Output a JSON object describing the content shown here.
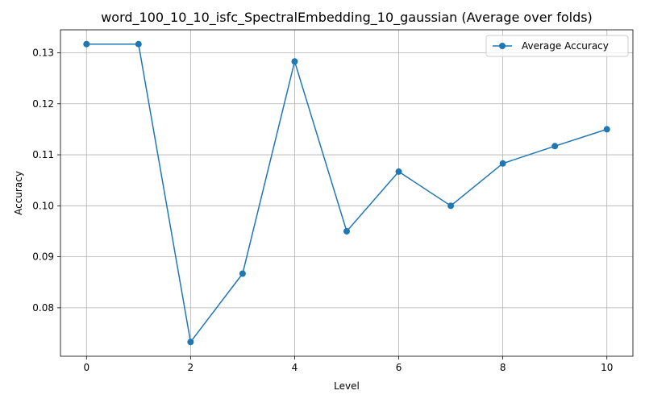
{
  "chart_data": {
    "type": "line",
    "title": "word_100_10_10_isfc_SpectralEmbedding_10_gaussian (Average over folds)",
    "xlabel": "Level",
    "ylabel": "Accuracy",
    "x": [
      0,
      1,
      2,
      3,
      4,
      5,
      6,
      7,
      8,
      9,
      10
    ],
    "series": [
      {
        "name": "Average Accuracy",
        "color": "#1f77b4",
        "marker": "circle",
        "values": [
          0.1317,
          0.1317,
          0.0733,
          0.0867,
          0.1283,
          0.095,
          0.1067,
          0.1,
          0.1083,
          0.1117,
          0.115
        ]
      }
    ],
    "xlim": [
      -0.5,
      10.5
    ],
    "ylim": [
      0.0705,
      0.1345
    ],
    "xticks": [
      0,
      2,
      4,
      6,
      8,
      10
    ],
    "xtick_labels": [
      "0",
      "2",
      "4",
      "6",
      "8",
      "10"
    ],
    "yticks": [
      0.08,
      0.09,
      0.1,
      0.11,
      0.12,
      0.13
    ],
    "ytick_labels": [
      "0.08",
      "0.09",
      "0.10",
      "0.11",
      "0.12",
      "0.13"
    ],
    "grid": true,
    "legend_position": "upper right"
  }
}
